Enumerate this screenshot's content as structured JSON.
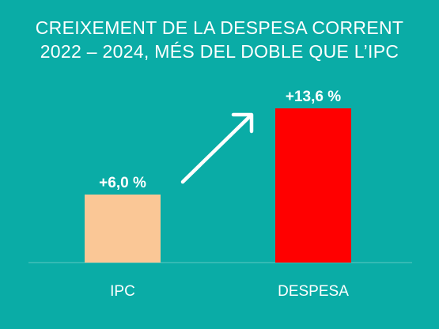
{
  "colors": {
    "background": "#0aaca6",
    "text": "#ffffff",
    "baseline": "#5fc8c3",
    "arrow": "#ffffff"
  },
  "chart_data": {
    "type": "bar",
    "title": "CREIXEMENT DE LA DESPESA CORRENT",
    "subtitle": "2022 – 2024, MÉS DEL DOBLE QUE L’IPC",
    "categories": [
      "IPC",
      "DESPESA"
    ],
    "values": [
      6.0,
      13.6
    ],
    "value_labels": [
      "+6,0 %",
      "+13,6 %"
    ],
    "bar_colors": [
      "#fac796",
      "#ff0000"
    ],
    "ylim": [
      0,
      13.6
    ],
    "grid": false,
    "legend": "none",
    "annotation": "arrow-up-right"
  }
}
